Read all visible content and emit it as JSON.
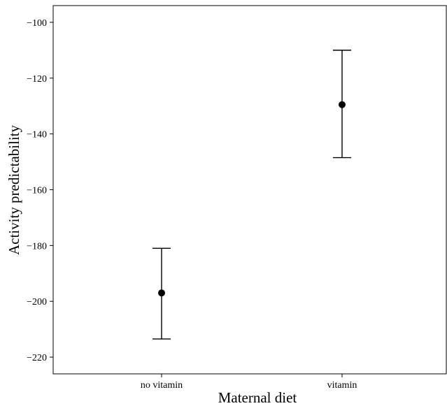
{
  "chart_data": {
    "type": "scatter",
    "subtype": "point-with-error-bars",
    "title": "",
    "xlabel": "Maternal diet",
    "ylabel": "Activity predictability",
    "categories": [
      "no vitamin",
      "vitamin"
    ],
    "points": [
      {
        "category": "no vitamin",
        "y": -197,
        "lower": -213.5,
        "upper": -181
      },
      {
        "category": "vitamin",
        "y": -129.5,
        "lower": -148.5,
        "upper": -110
      }
    ],
    "ylim": [
      -226,
      -94
    ],
    "yticks": [
      -100,
      -120,
      -140,
      -160,
      -180,
      -200,
      -220
    ],
    "grid": false,
    "legend": "none",
    "colors": {
      "marker": "#000000",
      "axis": "#000000",
      "background": "#ffffff"
    }
  }
}
